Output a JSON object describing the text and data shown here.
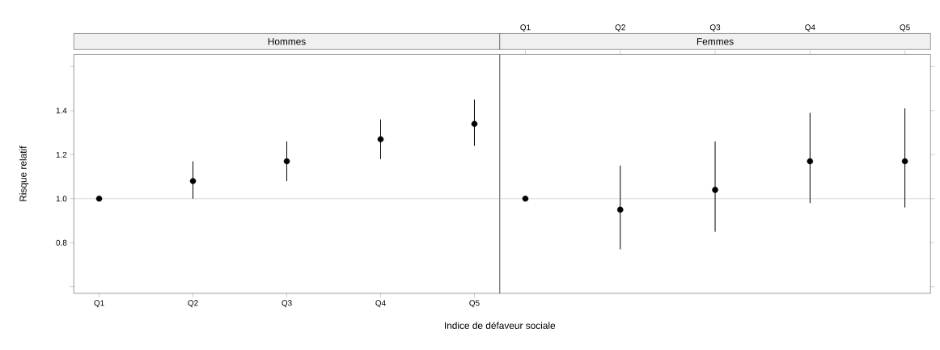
{
  "chart_data": [
    {
      "type": "scatter",
      "title": "Hommes",
      "xlabel": "Indice de défaveur sociale",
      "ylabel": "Risque relatif",
      "categories": [
        "Q1",
        "Q2",
        "Q3",
        "Q4",
        "Q5"
      ],
      "series": [
        {
          "color": "#000000",
          "values": [
            1.0,
            1.08,
            1.17,
            1.27,
            1.34
          ],
          "errors": [
            null,
            [
              1.0,
              1.17
            ],
            [
              1.08,
              1.26
            ],
            [
              1.18,
              1.36
            ],
            [
              1.24,
              1.45
            ]
          ]
        }
      ],
      "ylim": [
        0.57,
        1.655
      ],
      "yticks": [
        {
          "value": 0.6,
          "label": null
        },
        0.8,
        {
          "value": 1,
          "label": "1.0"
        },
        1.2,
        1.4,
        {
          "value": 1.6,
          "label": null
        }
      ],
      "ref_lines": [
        {
          "axis": "y",
          "value": 1,
          "color": "#bebebe"
        }
      ],
      "marker": "circle",
      "grid": false
    },
    {
      "type": "scatter",
      "title": "Femmes",
      "categories": [
        "Q1",
        "Q2",
        "Q3",
        "Q4",
        "Q5"
      ],
      "series": [
        {
          "color": "#000000",
          "values": [
            1.0,
            0.95,
            1.04,
            1.17,
            1.17
          ],
          "errors": [
            null,
            [
              0.77,
              1.15
            ],
            [
              0.85,
              1.26
            ],
            [
              0.98,
              1.39
            ],
            [
              0.96,
              1.41
            ]
          ]
        }
      ],
      "ylim": [
        0.57,
        1.655
      ],
      "yticks": [
        0.6,
        0.8,
        1,
        1.2,
        1.4,
        1.6
      ],
      "ref_lines": [
        {
          "axis": "y",
          "value": 1,
          "color": "#bebebe"
        }
      ],
      "marker": "circle",
      "grid": false,
      "tick_labels": "x"
    }
  ]
}
